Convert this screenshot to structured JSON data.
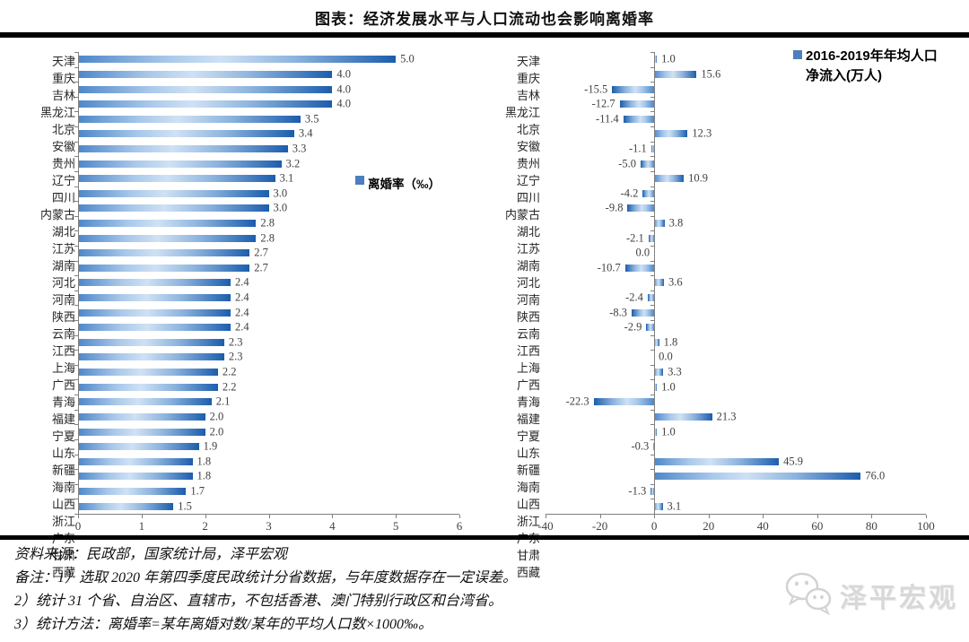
{
  "title": "图表：经济发展水平与人口流动也会影响离婚率",
  "chart_data": [
    {
      "type": "bar",
      "orientation": "horizontal",
      "legend": "离婚率（‰）",
      "xlabel": "",
      "ylabel": "",
      "xlim": [
        0,
        6
      ],
      "xticks": [
        0,
        1,
        2,
        3,
        4,
        5,
        6
      ],
      "grid": false,
      "legend_position": "center-right-of-plot",
      "categories": [
        "天津",
        "重庆",
        "吉林",
        "黑龙江",
        "北京",
        "安徽",
        "贵州",
        "辽宁",
        "四川",
        "内蒙古",
        "湖北",
        "江苏",
        "湖南",
        "河北",
        "河南",
        "陕西",
        "云南",
        "江西",
        "上海",
        "广西",
        "青海",
        "福建",
        "宁夏",
        "山东",
        "新疆",
        "海南",
        "山西",
        "浙江",
        "广东",
        "甘肃",
        "西藏"
      ],
      "values": [
        5.0,
        4.0,
        4.0,
        4.0,
        3.5,
        3.4,
        3.3,
        3.2,
        3.1,
        3.0,
        3.0,
        2.8,
        2.8,
        2.7,
        2.7,
        2.4,
        2.4,
        2.4,
        2.4,
        2.3,
        2.3,
        2.2,
        2.2,
        2.1,
        2.0,
        2.0,
        1.9,
        1.8,
        1.8,
        1.7,
        1.5
      ],
      "labels": [
        "5.0",
        "4.0",
        "4.0",
        "4.0",
        "3.5",
        "3.4",
        "3.3",
        "3.2",
        "3.1",
        "3.0",
        "3.0",
        "2.8",
        "2.8",
        "2.7",
        "2.7",
        "2.4",
        "2.4",
        "2.4",
        "2.4",
        "2.3",
        "2.3",
        "2.2",
        "2.2",
        "2.1",
        "2.0",
        "2.0",
        "1.9",
        "1.8",
        "1.8",
        "1.7",
        "1.5"
      ]
    },
    {
      "type": "bar",
      "orientation": "horizontal",
      "legend": "2016-2019年年均人口净流入(万人)",
      "legend_lines": [
        "2016-2019年年均人口",
        "净流入(万人)"
      ],
      "xlabel": "",
      "ylabel": "",
      "xlim": [
        -40,
        100
      ],
      "xticks": [
        -40,
        -20,
        0,
        20,
        40,
        60,
        80,
        100
      ],
      "grid": false,
      "legend_position": "top-right",
      "categories": [
        "天津",
        "重庆",
        "吉林",
        "黑龙江",
        "北京",
        "安徽",
        "贵州",
        "辽宁",
        "四川",
        "内蒙古",
        "湖北",
        "江苏",
        "湖南",
        "河北",
        "河南",
        "陕西",
        "云南",
        "江西",
        "上海",
        "广西",
        "青海",
        "福建",
        "宁夏",
        "山东",
        "新疆",
        "海南",
        "山西",
        "浙江",
        "广东",
        "甘肃",
        "西藏"
      ],
      "values": [
        1.0,
        15.6,
        -15.5,
        -12.7,
        -11.4,
        12.3,
        -1.1,
        -5.0,
        10.9,
        -4.2,
        -9.8,
        3.8,
        -2.1,
        0.0,
        -10.7,
        3.6,
        -2.4,
        -8.3,
        -2.9,
        1.8,
        0.0,
        3.3,
        1.0,
        -22.3,
        21.3,
        1.0,
        -0.3,
        45.9,
        76.0,
        -1.3,
        3.1
      ],
      "labels": [
        "1.0",
        "15.6",
        "-15.5",
        "-12.7",
        "-11.4",
        "12.3",
        "-1.1",
        "-5.0",
        "10.9",
        "-4.2",
        "-9.8",
        "3.8",
        "-2.1",
        "0.0",
        "-10.7",
        "3.6",
        "-2.4",
        "-8.3",
        "-2.9",
        "1.8",
        "0.0",
        "3.3",
        "1.0",
        "-22.3",
        "21.3",
        "1.0",
        "-0.3",
        "45.9",
        "76.0",
        "-1.3",
        "3.1"
      ],
      "label_sides": [
        "right",
        "right",
        "left",
        "left",
        "left",
        "right",
        "left",
        "left",
        "right",
        "left",
        "left",
        "right",
        "left",
        "left",
        "left",
        "right",
        "left",
        "left",
        "left",
        "right",
        "right",
        "right",
        "right",
        "left",
        "right",
        "right",
        "left",
        "right",
        "right",
        "left",
        "right"
      ]
    }
  ],
  "footer": {
    "source": "资料来源：民政部，国家统计局，泽平宏观",
    "notes": [
      "备注：1）选取 2020 年第四季度民政统计分省数据，与年度数据存在一定误差。",
      "2）统计 31 个省、自治区、直辖市，不包括香港、澳门特别行政区和台湾省。",
      "3）统计方法：离婚率=某年离婚对数/某年的平均人口数×1000‰。"
    ]
  },
  "watermark": {
    "text": "泽平宏观",
    "icon": "wechat-icon"
  },
  "colors": {
    "bar_dark": "#1b5dad",
    "bar_light": "#cfe1f4",
    "legend_square": "#4d7ebf",
    "axis": "#808080",
    "value_label": "#3f3f3f",
    "rule": "#000000",
    "watermark": "#d8d8d8"
  }
}
